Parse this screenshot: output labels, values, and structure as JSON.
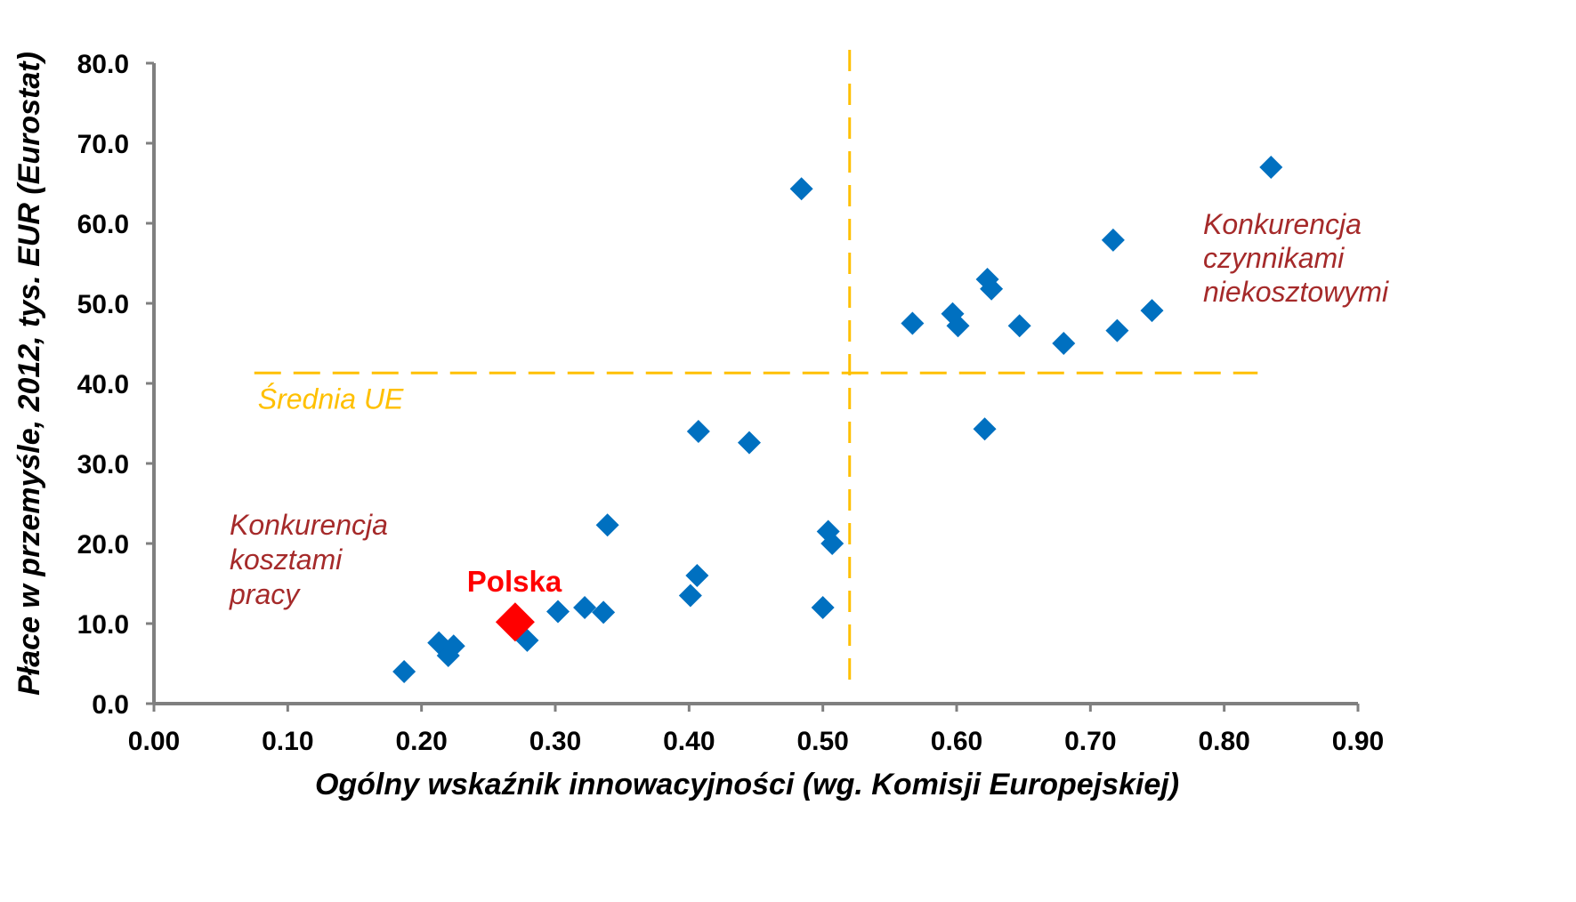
{
  "chart_data": {
    "type": "scatter",
    "title": "",
    "xlabel": "Ogólny wskaźnik innowacyjności (wg. Komisji Europejskiej)",
    "ylabel": "Płace w przemyśle, 2012, tys. EUR (Eurostat)",
    "xlim": [
      0.0,
      0.9
    ],
    "ylim": [
      0.0,
      80.0
    ],
    "x_ticks": [
      "0.00",
      "0.10",
      "0.20",
      "0.30",
      "0.40",
      "0.50",
      "0.60",
      "0.70",
      "0.80",
      "0.90"
    ],
    "y_ticks": [
      "0.0",
      "10.0",
      "20.0",
      "30.0",
      "40.0",
      "50.0",
      "60.0",
      "70.0",
      "80.0"
    ],
    "grid": false,
    "legend": "none",
    "series": [
      {
        "color": "#0070C0",
        "marker": "diamond",
        "points": [
          [
            0.187,
            4.0
          ],
          [
            0.213,
            7.6
          ],
          [
            0.22,
            6.0
          ],
          [
            0.224,
            7.2
          ],
          [
            0.279,
            7.9
          ],
          [
            0.302,
            11.5
          ],
          [
            0.322,
            12.0
          ],
          [
            0.336,
            11.4
          ],
          [
            0.339,
            22.3
          ],
          [
            0.401,
            13.5
          ],
          [
            0.406,
            16.0
          ],
          [
            0.407,
            34.0
          ],
          [
            0.445,
            32.6
          ],
          [
            0.484,
            64.3
          ],
          [
            0.5,
            12.0
          ],
          [
            0.504,
            21.5
          ],
          [
            0.507,
            20.0
          ],
          [
            0.567,
            47.5
          ],
          [
            0.597,
            48.7
          ],
          [
            0.601,
            47.2
          ],
          [
            0.621,
            34.3
          ],
          [
            0.623,
            53.0
          ],
          [
            0.626,
            51.8
          ],
          [
            0.647,
            47.2
          ],
          [
            0.68,
            45.0
          ],
          [
            0.717,
            57.9
          ],
          [
            0.72,
            46.6
          ],
          [
            0.746,
            49.1
          ],
          [
            0.835,
            67.0
          ]
        ]
      },
      {
        "name": "Polska",
        "color": "#FF0000",
        "marker": "diamond",
        "points": [
          [
            0.27,
            10.2
          ]
        ]
      }
    ],
    "reference_lines": [
      {
        "orientation": "horizontal",
        "value": 41.3,
        "x_from": 0.075,
        "x_to": 0.825,
        "style": "dashed",
        "color": "#FFC000",
        "label": "Średnia UE"
      },
      {
        "orientation": "vertical",
        "value": 0.52,
        "y_from": 3.0,
        "y_to": 83.0,
        "style": "dashed",
        "color": "#FFC000"
      }
    ],
    "annotations": [
      {
        "lines": [
          "Konkurencja",
          "czynnikami",
          "niekosztowymi"
        ],
        "color": "#A52A2A",
        "style": "italic"
      },
      {
        "lines": [
          "Konkurencja",
          "kosztami",
          "pracy"
        ],
        "color": "#A52A2A",
        "style": "italic"
      },
      {
        "lines": [
          "Polska"
        ],
        "color": "#FF0000",
        "style": "bold"
      }
    ]
  }
}
